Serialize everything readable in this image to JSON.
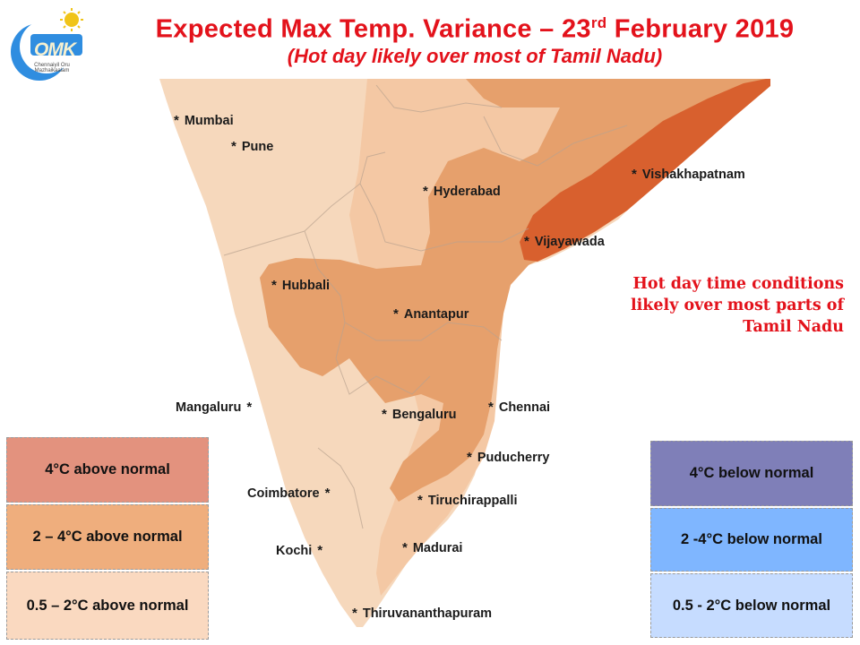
{
  "title": {
    "prefix": "Expected Max Temp. Variance – 23",
    "superscript": "rd",
    "suffix": " February 2019",
    "subtitle": "(Hot day likely over most of Tamil Nadu)"
  },
  "logo": {
    "name": "OMK",
    "tagline": "Chennaiyil Oru Mazhaikaalam"
  },
  "colors": {
    "land_base": "#f6d8bc",
    "zone_0_5_2": "#f4c8a4",
    "zone_2_4": "#e6a06c",
    "zone_4_plus": "#d8602e",
    "legend_above_4": "#e3927e",
    "legend_above_2_4": "#efae7d",
    "legend_above_0_5_2": "#fad9c0",
    "legend_below_4": "#7f7fb8",
    "legend_below_2_4": "#7fb6ff",
    "legend_below_0_5_2": "#c6dcff",
    "title_text": "#e3121b"
  },
  "cities": [
    {
      "name": "Mumbai",
      "star_side": "left"
    },
    {
      "name": "Pune",
      "star_side": "left"
    },
    {
      "name": "Hyderabad",
      "star_side": "left"
    },
    {
      "name": "Vishakhapatnam",
      "star_side": "left"
    },
    {
      "name": "Vijayawada",
      "star_side": "left"
    },
    {
      "name": "Hubbali",
      "star_side": "left"
    },
    {
      "name": "Anantapur",
      "star_side": "left"
    },
    {
      "name": "Mangaluru",
      "star_side": "right"
    },
    {
      "name": "Bengaluru",
      "star_side": "left"
    },
    {
      "name": "Chennai",
      "star_side": "left"
    },
    {
      "name": "Puducherry",
      "star_side": "left"
    },
    {
      "name": "Coimbatore",
      "star_side": "right"
    },
    {
      "name": "Tiruchirappalli",
      "star_side": "left"
    },
    {
      "name": "Kochi",
      "star_side": "right"
    },
    {
      "name": "Madurai",
      "star_side": "left"
    },
    {
      "name": "Thiruvananthapuram",
      "star_side": "left"
    }
  ],
  "note": "Hot day time conditions likely over most parts of Tamil Nadu",
  "legend": {
    "above": [
      {
        "label": "4°C above normal"
      },
      {
        "label": "2 – 4°C above normal"
      },
      {
        "label": "0.5 – 2°C above normal"
      }
    ],
    "below": [
      {
        "label": "4°C  below normal"
      },
      {
        "label": "2 -4°C below normal"
      },
      {
        "label": "0.5 - 2°C below normal"
      }
    ]
  }
}
